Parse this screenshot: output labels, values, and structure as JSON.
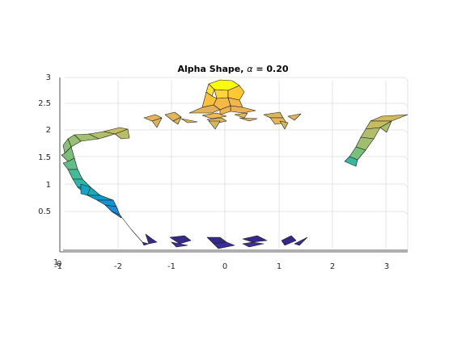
{
  "figure": {
    "title_prefix": "Alpha Shape, ",
    "title_symbol": "α",
    "title_suffix": " = 0.20"
  },
  "axes": {
    "x_ticks": [
      "-2",
      "-1",
      "0",
      "1",
      "2",
      "3"
    ],
    "x_origin_tick": "-1",
    "y_ticks": [
      "0.5",
      "1",
      "1.5",
      "2",
      "2.5",
      "3"
    ],
    "corner_tick_a": "1",
    "corner_tick_b": "0"
  },
  "colors": {
    "background": "#ffffff",
    "grid": "#dcdcdc",
    "edge": "#1a1a1a",
    "shape_colormap": [
      "#352a87",
      "#0f5cdd",
      "#1481d6",
      "#06a4ca",
      "#2eb7a4",
      "#87bf77",
      "#d1bb59",
      "#fec832",
      "#f9fb0e"
    ]
  }
}
